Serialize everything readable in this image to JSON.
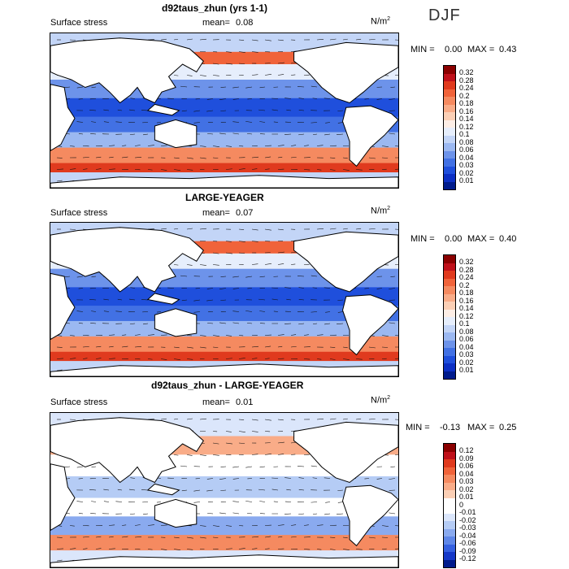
{
  "season": "DJF",
  "panels": [
    {
      "title": "d92taus_zhun (yrs 1-1)",
      "variable": "Surface stress",
      "mean_label": "mean=",
      "mean_value": "0.08",
      "units": "N/m",
      "units_sup": "2",
      "min_label": "MIN =",
      "min_value": "0.00",
      "max_label": "MAX =",
      "max_value": "0.43",
      "colorbar_labels": [
        "0.32",
        "0.28",
        "0.24",
        "0.2",
        "0.18",
        "0.16",
        "0.14",
        "0.12",
        "0.1",
        "0.08",
        "0.06",
        "0.04",
        "0.03",
        "0.02",
        "0.01"
      ]
    },
    {
      "title": "LARGE-YEAGER",
      "variable": "Surface stress",
      "mean_label": "mean=",
      "mean_value": "0.07",
      "units": "N/m",
      "units_sup": "2",
      "min_label": "MIN =",
      "min_value": "0.00",
      "max_label": "MAX =",
      "max_value": "0.40",
      "colorbar_labels": [
        "0.32",
        "0.28",
        "0.24",
        "0.2",
        "0.18",
        "0.16",
        "0.14",
        "0.12",
        "0.1",
        "0.08",
        "0.06",
        "0.04",
        "0.03",
        "0.02",
        "0.01"
      ]
    },
    {
      "title": "d92taus_zhun - LARGE-YEAGER",
      "variable": "Surface stress",
      "mean_label": "mean=",
      "mean_value": "0.01",
      "units": "N/m",
      "units_sup": "2",
      "min_label": "MIN =",
      "min_value": "-0.13",
      "max_label": "MAX =",
      "max_value": "0.25",
      "colorbar_labels": [
        "0.12",
        "0.09",
        "0.06",
        "0.04",
        "0.03",
        "0.02",
        "0.01",
        "0",
        "-0.01",
        "-0.02",
        "-0.03",
        "-0.04",
        "-0.06",
        "-0.09",
        "-0.12"
      ]
    }
  ],
  "colors": {
    "seq": [
      "#8b0000",
      "#c0101a",
      "#e03a1e",
      "#f0633a",
      "#f58a60",
      "#f9ac88",
      "#fbcfb5",
      "#fdeee6",
      "#e6eefc",
      "#c3d5f7",
      "#9bb8f1",
      "#6d93ea",
      "#4271e4",
      "#1f4fdc",
      "#0c2fc4",
      "#001b8c"
    ],
    "div": [
      "#8b0000",
      "#c0101a",
      "#e03a1e",
      "#f0633a",
      "#f58a60",
      "#f9ac88",
      "#fbcfb5",
      "#ffffff",
      "#ffffff",
      "#dbe6fb",
      "#b5ccf5",
      "#8aaaef",
      "#5f87e8",
      "#3560e0",
      "#1538c8",
      "#001b8c"
    ],
    "land": "#ffffff",
    "coast": "#000000"
  }
}
